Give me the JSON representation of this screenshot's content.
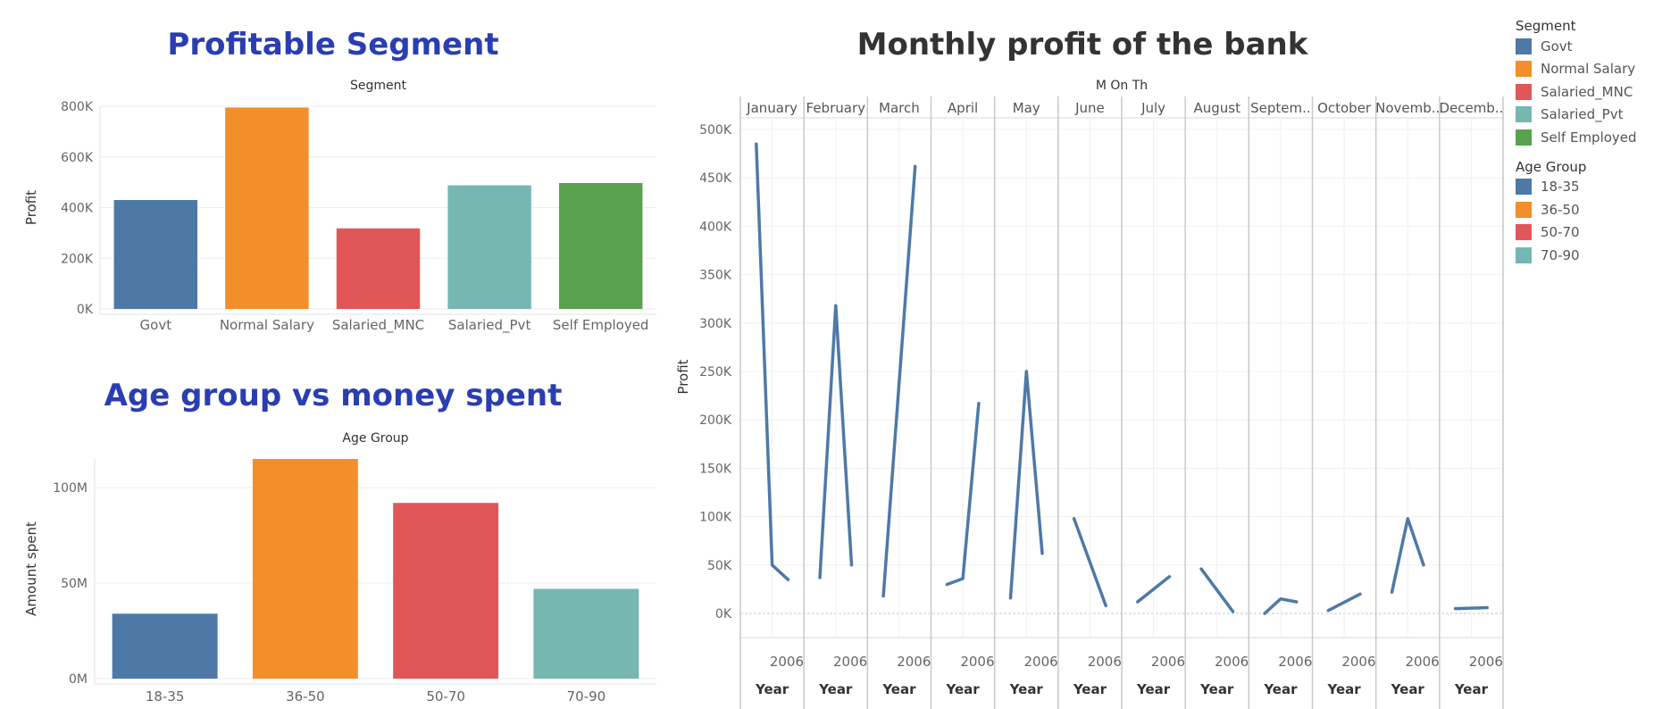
{
  "colors": {
    "blue": "#4e79a7",
    "orange": "#f28e2b",
    "red": "#e15759",
    "teal": "#76b7b2",
    "green": "#59a14f",
    "title_blue": "#2a3eb1",
    "title_dark": "#333333"
  },
  "chart_data": [
    {
      "type": "bar",
      "title": "Profitable Segment",
      "header": "Segment",
      "ylabel": "Profit",
      "categories": [
        "Govt",
        "Normal Salary",
        "Salaried_MNC",
        "Salaried_Pvt",
        "Self Employed"
      ],
      "values": [
        430000,
        795000,
        318000,
        488000,
        497000
      ],
      "colors": [
        "#4e79a7",
        "#f28e2b",
        "#e15759",
        "#76b7b2",
        "#59a14f"
      ],
      "ylim": [
        0,
        800000
      ],
      "yticks": [
        0,
        200000,
        400000,
        600000,
        800000
      ],
      "ytick_labels": [
        "0K",
        "200K",
        "400K",
        "600K",
        "800K"
      ],
      "grid": true
    },
    {
      "type": "bar",
      "title": "Age group vs money spent",
      "header": "Age Group",
      "ylabel": "Amount spent",
      "categories": [
        "18-35",
        "36-50",
        "50-70",
        "70-90"
      ],
      "values": [
        34000000,
        115000000,
        92000000,
        47000000
      ],
      "colors": [
        "#4e79a7",
        "#f28e2b",
        "#e15759",
        "#76b7b2"
      ],
      "ylim": [
        0,
        115000000
      ],
      "yticks": [
        0,
        50000000,
        100000000
      ],
      "ytick_labels": [
        "0M",
        "50M",
        "100M"
      ],
      "grid": true
    },
    {
      "type": "line",
      "title": "Monthly profit of the bank",
      "header": "M On Th",
      "ylabel": "Profit",
      "xlabel": "Year",
      "x_tick_label": "2006",
      "ylim": [
        0,
        500000
      ],
      "yticks": [
        0,
        50000,
        100000,
        150000,
        200000,
        250000,
        300000,
        350000,
        400000,
        450000,
        500000
      ],
      "ytick_labels": [
        "0K",
        "50K",
        "100K",
        "150K",
        "200K",
        "250K",
        "300K",
        "350K",
        "400K",
        "450K",
        "500K"
      ],
      "color": "#4e79a7",
      "grid": true,
      "panels": [
        {
          "label": "January",
          "values": [
            485000,
            50000,
            35000
          ]
        },
        {
          "label": "February",
          "values": [
            37000,
            318000,
            50000
          ]
        },
        {
          "label": "March",
          "values": [
            18000,
            462000
          ]
        },
        {
          "label": "April",
          "values": [
            30000,
            36000,
            217000
          ]
        },
        {
          "label": "May",
          "values": [
            16000,
            250000,
            62000
          ]
        },
        {
          "label": "June",
          "values": [
            98000,
            8000
          ]
        },
        {
          "label": "July",
          "values": [
            12000,
            38000
          ]
        },
        {
          "label": "August",
          "values": [
            46000,
            2000
          ]
        },
        {
          "label": "Septem..",
          "values": [
            0,
            15000,
            12000
          ]
        },
        {
          "label": "October",
          "values": [
            3000,
            20000
          ]
        },
        {
          "label": "Novemb..",
          "values": [
            22000,
            98000,
            50000
          ]
        },
        {
          "label": "Decemb..",
          "values": [
            5000,
            6000
          ]
        }
      ]
    }
  ],
  "legend": {
    "segment_title": "Segment",
    "segment_items": [
      {
        "label": "Govt",
        "color": "#4e79a7"
      },
      {
        "label": "Normal Salary",
        "color": "#f28e2b"
      },
      {
        "label": "Salaried_MNC",
        "color": "#e15759"
      },
      {
        "label": "Salaried_Pvt",
        "color": "#76b7b2"
      },
      {
        "label": "Self Employed",
        "color": "#59a14f"
      }
    ],
    "age_title": "Age Group",
    "age_items": [
      {
        "label": "18-35",
        "color": "#4e79a7"
      },
      {
        "label": "36-50",
        "color": "#f28e2b"
      },
      {
        "label": "50-70",
        "color": "#e15759"
      },
      {
        "label": "70-90",
        "color": "#76b7b2"
      }
    ]
  }
}
